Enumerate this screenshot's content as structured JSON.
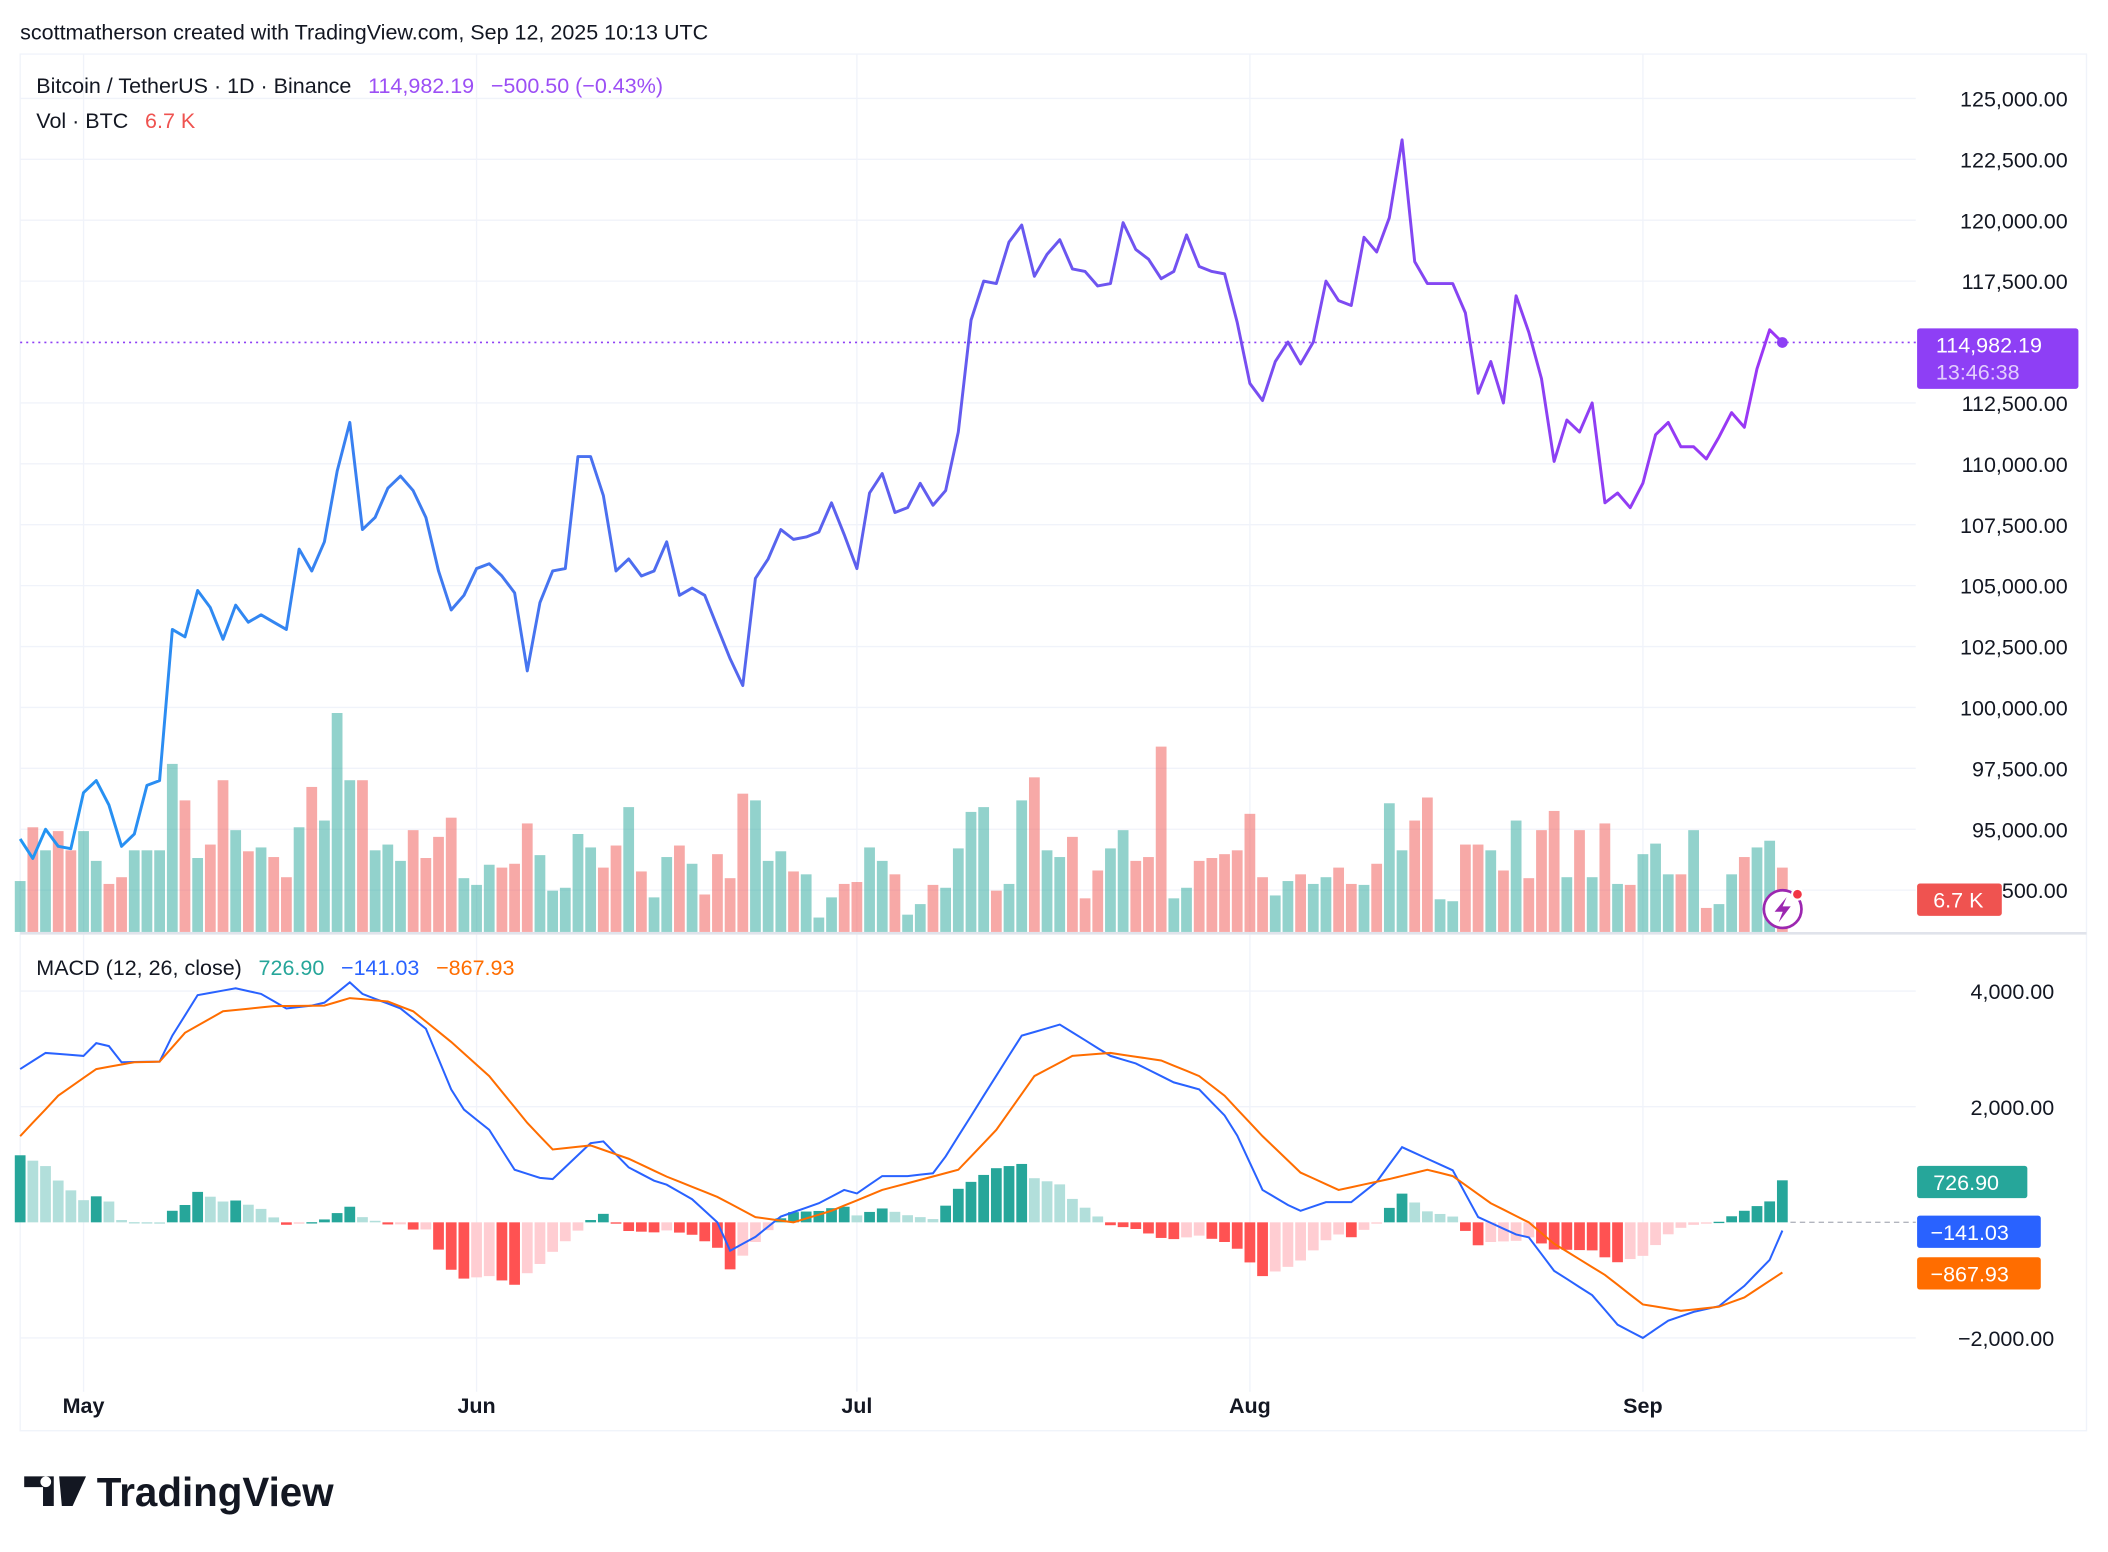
{
  "attribution": "scottmatherson created with TradingView.com, Sep 12, 2025 10:13 UTC",
  "legend": {
    "symbol": "Bitcoin / TetherUS · 1D · Binance",
    "last_price": "114,982.19",
    "change": "−500.50 (−0.43%)",
    "volume_label": "Vol · BTC",
    "volume_value": "6.7 K",
    "macd_label": "MACD (12, 26, close)",
    "macd_hist": "726.90",
    "macd_line": "−141.03",
    "macd_signal": "−867.93"
  },
  "price_badge": {
    "price": "114,982.19",
    "countdown": "13:46:38"
  },
  "volume_badge": "6.7 K",
  "macd_badges": {
    "hist": "726.90",
    "macd": "−141.03",
    "signal": "−867.93"
  },
  "logo_text": "TradingView",
  "colors": {
    "price_line_start": "#2196f3",
    "price_line_end": "#9c36f5",
    "up": "#26a69a",
    "down": "#ef5350",
    "macd": "#2962ff",
    "signal": "#ff6d00",
    "last_price_badge": "#8e3ff5"
  },
  "chart_data": [
    {
      "type": "line",
      "title": "Bitcoin / TetherUS · 1D · Binance",
      "y_ticks": [
        "125,000.00",
        "122,500.00",
        "120,000.00",
        "117,500.00",
        "112,500.00",
        "110,000.00",
        "107,500.00",
        "105,000.00",
        "102,500.00",
        "100,000.00",
        "97,500.00",
        "95,000.00",
        "92,500.00"
      ],
      "x_ticks": [
        "May",
        "Jun",
        "Jul",
        "Aug",
        "Sep"
      ],
      "grid": true,
      "close": [
        {
          "month": "2025-04",
          "first_day": 26,
          "values": [
            94600,
            93800,
            95000,
            94300,
            94200
          ]
        },
        {
          "month": "2025-05",
          "first_day": 1,
          "values": [
            96500,
            97000,
            96000,
            94300,
            94800,
            96800,
            97000,
            103200,
            102900,
            104800,
            104100,
            102800,
            104200,
            103500,
            103800,
            103500,
            103200,
            106500,
            105600,
            106800,
            109700,
            111700,
            107300,
            107800,
            109000,
            109500,
            108900,
            107800,
            105600,
            104000,
            104600
          ]
        },
        {
          "month": "2025-06",
          "first_day": 1,
          "values": [
            105700,
            105900,
            105400,
            104700,
            101500,
            104300,
            105600,
            105700,
            110300,
            110300,
            108700,
            105600,
            106100,
            105400,
            105600,
            106800,
            104600,
            104900,
            104600,
            103300,
            102000,
            100900,
            105300,
            106100,
            107300,
            106900,
            107000,
            107200,
            108400,
            107100
          ]
        },
        {
          "month": "2025-07",
          "first_day": 1,
          "values": [
            105700,
            108800,
            109600,
            108000,
            108200,
            109200,
            108300,
            108900,
            111300,
            115900,
            117500,
            117400,
            119100,
            119800,
            117700,
            118600,
            119200,
            118000,
            117900,
            117300,
            117400,
            119900,
            118800,
            118400,
            117600,
            117900,
            119400,
            118100,
            117900,
            117800,
            115800
          ]
        },
        {
          "month": "2025-08",
          "first_day": 1,
          "values": [
            113300,
            112600,
            114200,
            115000,
            114100,
            115000,
            117500,
            116700,
            116500,
            119300,
            118700,
            120100,
            123300,
            118300,
            117400,
            117400,
            117400,
            116200,
            112900,
            114200,
            112500,
            116900,
            115400,
            113500,
            110100,
            111800,
            111300,
            112500,
            108400,
            108800,
            108200
          ]
        },
        {
          "month": "2025-09",
          "first_day": 1,
          "values": [
            109200,
            111200,
            111700,
            110700,
            110700,
            110200,
            111100,
            112100,
            111500,
            113900,
            115500,
            114982.19
          ]
        }
      ],
      "last_price": 114982.19
    },
    {
      "type": "bar",
      "name": "Vol · BTC",
      "unit": "K BTC",
      "volume": [
        {
          "month": "2025-04",
          "first_day": 26,
          "values": [
            5.3,
            10.9,
            8.5,
            10.5,
            8.5
          ]
        },
        {
          "month": "2025-05",
          "first_day": 1,
          "values": [
            10.5,
            7.4,
            5.0,
            5.7,
            8.5,
            8.5,
            8.5,
            17.5,
            13.7,
            7.7,
            9.1,
            15.8,
            10.6,
            8.4,
            8.8,
            7.8,
            5.7,
            10.9,
            15.1,
            11.6,
            22.8,
            15.8,
            15.8,
            8.5,
            9.1,
            7.4,
            10.6,
            7.7,
            9.9,
            11.9,
            5.6
          ]
        },
        {
          "month": "2025-06",
          "first_day": 1,
          "values": [
            4.9,
            7.0,
            6.7,
            7.1,
            11.3,
            8.0,
            4.3,
            4.6,
            10.2,
            8.8,
            6.7,
            9.0,
            13.0,
            6.3,
            3.6,
            7.8,
            9.0,
            7.1,
            3.9,
            8.1,
            5.6,
            14.4,
            13.7,
            7.4,
            8.4,
            6.3,
            6.0,
            1.5,
            3.6,
            5.0
          ]
        },
        {
          "month": "2025-07",
          "first_day": 1,
          "values": [
            5.2,
            8.8,
            7.4,
            6.0,
            1.8,
            2.9,
            4.9,
            4.6,
            8.7,
            12.5,
            13.0,
            4.3,
            5.0,
            13.7,
            16.1,
            8.5,
            7.8,
            9.9,
            3.5,
            6.4,
            8.7,
            10.6,
            7.4,
            7.8,
            19.3,
            3.5,
            4.6,
            7.4,
            7.7,
            8.1,
            8.5
          ]
        },
        {
          "month": "2025-08",
          "first_day": 1,
          "values": [
            12.3,
            5.7,
            3.8,
            5.3,
            6.0,
            5.0,
            5.7,
            6.7,
            5.0,
            4.9,
            7.1,
            13.4,
            8.5,
            11.6,
            14.0,
            3.4,
            3.2,
            9.1,
            9.1,
            8.5,
            6.4,
            11.6,
            5.6,
            10.6,
            12.6,
            5.7,
            10.6,
            5.7,
            11.3,
            5.0,
            4.9
          ]
        },
        {
          "month": "2025-09",
          "first_day": 1,
          "values": [
            8.1,
            9.2,
            6.0,
            6.0,
            10.6,
            2.5,
            2.9,
            6.0,
            7.8,
            8.8,
            9.5,
            6.7
          ]
        }
      ]
    },
    {
      "type": "line",
      "title": "MACD (12, 26, close)",
      "y_ticks": [
        "4,000.00",
        "2,000.00",
        "−2,000.00"
      ],
      "macd": {
        "2025-04-26": 2650,
        "2025-04-28": 2930,
        "2025-05-01": 2880,
        "2025-05-02": 3100,
        "2025-05-03": 3050,
        "2025-05-04": 2770,
        "2025-05-07": 2780,
        "2025-05-08": 3230,
        "2025-05-10": 3930,
        "2025-05-13": 4050,
        "2025-05-15": 3950,
        "2025-05-17": 3700,
        "2025-05-19": 3750,
        "2025-05-20": 3800,
        "2025-05-22": 4150,
        "2025-05-23": 3950,
        "2025-05-26": 3700,
        "2025-05-28": 3350,
        "2025-05-30": 2300,
        "2025-05-31": 1950,
        "2025-06-02": 1600,
        "2025-06-04": 910,
        "2025-06-06": 770,
        "2025-06-07": 750,
        "2025-06-10": 1370,
        "2025-06-11": 1400,
        "2025-06-13": 950,
        "2025-06-15": 720,
        "2025-06-16": 650,
        "2025-06-18": 400,
        "2025-06-20": 0,
        "2025-06-21": -490,
        "2025-06-23": -250,
        "2025-06-25": 100,
        "2025-06-28": 330,
        "2025-06-30": 560,
        "2025-07-01": 500,
        "2025-07-03": 800,
        "2025-07-05": 800,
        "2025-07-07": 850,
        "2025-07-08": 1140,
        "2025-07-11": 2190,
        "2025-07-14": 3230,
        "2025-07-17": 3420,
        "2025-07-19": 3150,
        "2025-07-21": 2880,
        "2025-07-23": 2750,
        "2025-07-26": 2420,
        "2025-07-28": 2300,
        "2025-07-30": 1850,
        "2025-07-31": 1500,
        "2025-08-02": 560,
        "2025-08-04": 300,
        "2025-08-05": 200,
        "2025-08-07": 350,
        "2025-08-09": 350,
        "2025-08-11": 700,
        "2025-08-13": 1300,
        "2025-08-15": 1100,
        "2025-08-17": 900,
        "2025-08-19": 90,
        "2025-08-22": -210,
        "2025-08-23": -260,
        "2025-08-25": -840,
        "2025-08-28": -1260,
        "2025-08-30": -1770,
        "2025-09-01": -2000,
        "2025-09-03": -1700,
        "2025-09-05": -1550,
        "2025-09-07": -1450,
        "2025-09-09": -1100,
        "2025-09-11": -650,
        "2025-09-12": -141.03
      },
      "signal": {
        "2025-04-26": 1490,
        "2025-04-29": 2190,
        "2025-05-02": 2650,
        "2025-05-05": 2770,
        "2025-05-07": 2780,
        "2025-05-09": 3280,
        "2025-05-12": 3650,
        "2025-05-16": 3740,
        "2025-05-20": 3750,
        "2025-05-22": 3880,
        "2025-05-25": 3820,
        "2025-05-27": 3650,
        "2025-05-30": 3120,
        "2025-06-02": 2530,
        "2025-06-05": 1720,
        "2025-06-07": 1260,
        "2025-06-10": 1330,
        "2025-06-13": 1100,
        "2025-06-16": 790,
        "2025-06-20": 440,
        "2025-06-23": 90,
        "2025-06-26": 0,
        "2025-06-29": 200,
        "2025-07-03": 560,
        "2025-07-09": 910,
        "2025-07-12": 1600,
        "2025-07-15": 2530,
        "2025-07-18": 2880,
        "2025-07-21": 2930,
        "2025-07-25": 2800,
        "2025-07-28": 2530,
        "2025-07-30": 2190,
        "2025-08-02": 1490,
        "2025-08-05": 860,
        "2025-08-08": 560,
        "2025-08-12": 750,
        "2025-08-15": 910,
        "2025-08-17": 800,
        "2025-08-20": 330,
        "2025-08-23": 0,
        "2025-08-25": -370,
        "2025-08-29": -910,
        "2025-09-01": -1420,
        "2025-09-04": -1530,
        "2025-09-07": -1460,
        "2025-09-09": -1300,
        "2025-09-12": -867.93
      },
      "histogram_last": 726.9
    }
  ]
}
